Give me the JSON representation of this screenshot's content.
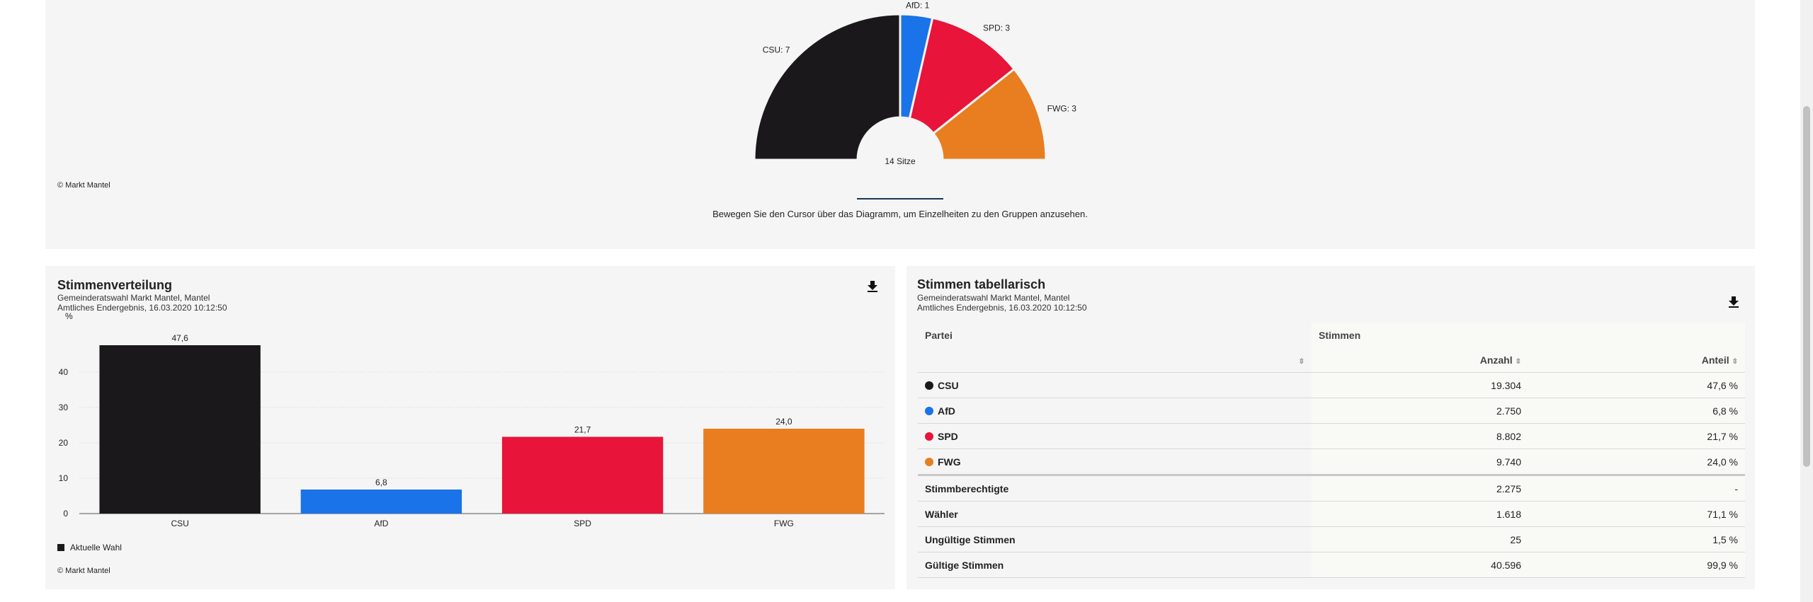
{
  "seat_chart": {
    "total_label": "14 Sitze",
    "copyright": "© Markt Mantel",
    "hint": "Bewegen Sie den Cursor über das Diagramm, um Einzelheiten zu den Gruppen anzusehen.",
    "parties": [
      {
        "name": "CSU",
        "seats": 7,
        "label": "CSU: 7",
        "color": "#1a181b"
      },
      {
        "name": "AfD",
        "seats": 1,
        "label": "AfD: 1",
        "color": "#1a73e8"
      },
      {
        "name": "SPD",
        "seats": 3,
        "label": "SPD: 3",
        "color": "#e8143a"
      },
      {
        "name": "FWG",
        "seats": 3,
        "label": "FWG: 3",
        "color": "#e87e20"
      }
    ]
  },
  "bar_section": {
    "title": "Stimmenverteilung",
    "subtitle1": "Gemeinderatswahl Markt Mantel, Mantel",
    "subtitle2": "Amtliches Endergebnis, 16.03.2020 10:12:50",
    "legend_label": "Aktuelle Wahl",
    "copyright": "© Markt Mantel",
    "download_icon": "download-icon"
  },
  "chart_data": {
    "type": "bar",
    "categories": [
      "CSU",
      "AfD",
      "SPD",
      "FWG"
    ],
    "values": [
      47.6,
      6.8,
      21.7,
      24.0
    ],
    "value_labels": [
      "47,6",
      "6,8",
      "21,7",
      "24,0"
    ],
    "colors": [
      "#1a181b",
      "#1a73e8",
      "#e8143a",
      "#e87e20"
    ],
    "ylabel": "%",
    "ylim": [
      0,
      50
    ],
    "yticks": [
      0,
      10,
      20,
      30,
      40
    ],
    "grid": true,
    "legend": "bottom-left"
  },
  "table_section": {
    "title": "Stimmen tabellarisch",
    "subtitle1": "Gemeinderatswahl Markt Mantel, Mantel",
    "subtitle2": "Amtliches Endergebnis, 16.03.2020 10:12:50",
    "col_party": "Partei",
    "col_votes": "Stimmen",
    "col_count": "Anzahl",
    "col_share": "Anteil",
    "party_rows": [
      {
        "name": "CSU",
        "color": "#1a181b",
        "count": "19.304",
        "share": "47,6 %"
      },
      {
        "name": "AfD",
        "color": "#1a73e8",
        "count": "2.750",
        "share": "6,8 %"
      },
      {
        "name": "SPD",
        "color": "#e8143a",
        "count": "8.802",
        "share": "21,7 %"
      },
      {
        "name": "FWG",
        "color": "#e87e20",
        "count": "9.740",
        "share": "24,0 %"
      }
    ],
    "summary_rows": [
      {
        "name": "Stimmberechtigte",
        "count": "2.275",
        "share": "-"
      },
      {
        "name": "Wähler",
        "count": "1.618",
        "share": "71,1 %"
      },
      {
        "name": "Ungültige Stimmen",
        "count": "25",
        "share": "1,5 %"
      },
      {
        "name": "Gültige Stimmen",
        "count": "40.596",
        "share": "99,9 %"
      }
    ]
  }
}
